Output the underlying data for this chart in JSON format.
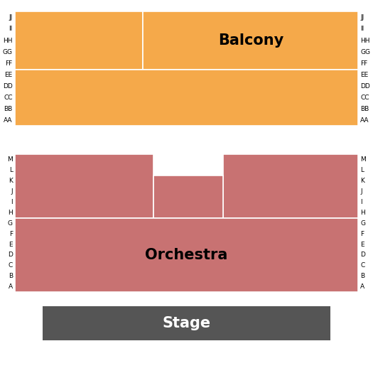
{
  "background_color": "#ffffff",
  "balcony_color": "#F5A94A",
  "orchestra_color": "#C87272",
  "stage_color": "#555555",
  "balcony_label": "Balcony",
  "orchestra_label": "Orchestra",
  "stage_label": "Stage",
  "balcony_rows_upper": [
    "JJ",
    "II",
    "HH",
    "GG",
    "FF"
  ],
  "balcony_rows_lower": [
    "EE",
    "DD",
    "CC",
    "BB",
    "AA"
  ],
  "orchestra_rows": [
    "M",
    "L",
    "K",
    "J",
    "I",
    "H",
    "G",
    "F",
    "E",
    "D",
    "C",
    "B",
    "A"
  ],
  "figsize": [
    5.25,
    5.25
  ],
  "dpi": 100
}
